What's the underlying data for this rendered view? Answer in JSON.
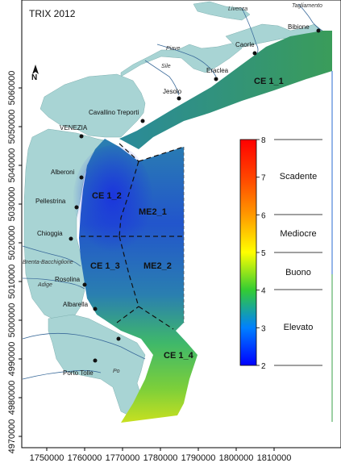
{
  "title": "TRIX 2012",
  "north_label": "N",
  "y_ticks": [
    "4970000",
    "4980000",
    "4990000",
    "5000000",
    "5010000",
    "5020000",
    "5030000",
    "5040000",
    "5050000",
    "5060000"
  ],
  "x_ticks": [
    "1750000",
    "1760000",
    "1770000",
    "1780000",
    "1790000",
    "1800000",
    "1810000"
  ],
  "places": [
    {
      "id": "bibione",
      "label": "Bibione"
    },
    {
      "id": "caorle",
      "label": "Caorle"
    },
    {
      "id": "eraclea",
      "label": "Eraclea"
    },
    {
      "id": "jesolo",
      "label": "Jesolo"
    },
    {
      "id": "cavallino",
      "label": "Cavallino Treporti"
    },
    {
      "id": "venezia",
      "label": "VENEZIA"
    },
    {
      "id": "alberoni",
      "label": "Alberoni"
    },
    {
      "id": "pellestrina",
      "label": "Pellestrina"
    },
    {
      "id": "chioggia",
      "label": "Chioggia"
    },
    {
      "id": "rosolina",
      "label": "Rosolina"
    },
    {
      "id": "albarella",
      "label": "Albarella"
    },
    {
      "id": "porto_tolle",
      "label": "Porto Tolle"
    }
  ],
  "rivers": [
    {
      "id": "tagliamento",
      "label": "Tagliamento"
    },
    {
      "id": "livenza",
      "label": "Livenza"
    },
    {
      "id": "piave",
      "label": "Piave"
    },
    {
      "id": "sile",
      "label": "Sile"
    },
    {
      "id": "brenta",
      "label": "Brenta-Bacchiglione"
    },
    {
      "id": "adige",
      "label": "Adige"
    },
    {
      "id": "po",
      "label": "Po"
    }
  ],
  "zones": [
    {
      "id": "ce1_1",
      "label": "CE 1_1"
    },
    {
      "id": "ce1_2",
      "label": "CE 1_2"
    },
    {
      "id": "me2_1",
      "label": "ME2_1"
    },
    {
      "id": "ce1_3",
      "label": "CE 1_3"
    },
    {
      "id": "me2_2",
      "label": "ME2_2"
    },
    {
      "id": "ce1_4",
      "label": "CE 1_4"
    }
  ],
  "legend": {
    "ticks": [
      "2",
      "3",
      "4",
      "5",
      "6",
      "7",
      "8"
    ],
    "classes": [
      "Scadente",
      "Mediocre",
      "Buono",
      "Elevato"
    ]
  },
  "colors": {
    "land": "#a8d4d4",
    "border": "#222222",
    "river": "#3a6a9a"
  }
}
